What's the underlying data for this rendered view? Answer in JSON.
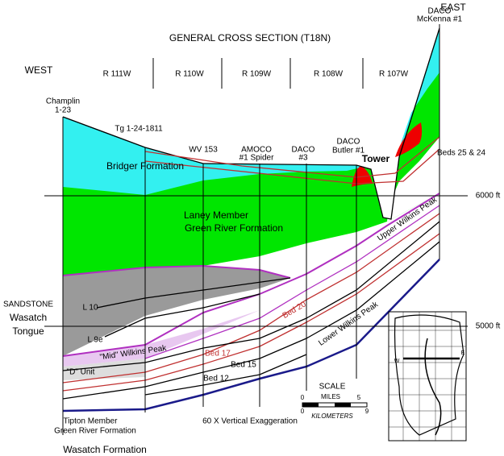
{
  "title": "GENERAL CROSS SECTION (T18N)",
  "directions": {
    "west": "WEST",
    "east": "EAST"
  },
  "ranges": [
    "R 111W",
    "R 110W",
    "R 109W",
    "R 108W",
    "R 107W"
  ],
  "wells": [
    {
      "name": "Champlin",
      "id": "1-23"
    },
    {
      "name": "Tg 1-24-1811"
    },
    {
      "name": "WV 153"
    },
    {
      "name": "AMOCO",
      "id": "#1 Spider"
    },
    {
      "name": "DACO",
      "id": "#3"
    },
    {
      "name": "DACO",
      "id": "Butler #1"
    },
    {
      "name": "DACO",
      "id": "McKenna #1"
    }
  ],
  "elevations": [
    "6000 ft",
    "5000 ft"
  ],
  "units": {
    "bridger": "Bridger Formation",
    "tower": "Tower",
    "beds_25_24": "Beds 25 & 24",
    "laney": "Laney Member",
    "green_river": "Green River Formation",
    "upper_wp": "Upper Wilkins Peak",
    "l10": "L 10",
    "l9e": "L 9e",
    "sandstone": "SANDSTONE",
    "wasatch": "Wasatch",
    "tongue": "Tongue",
    "bed20": "Bed 20",
    "lower_wp": "Lower Wilkins Peak",
    "mid_wp": "\"Mid\" Wilkins Peak",
    "bed17": "Bed 17",
    "bed15": "Bed 15",
    "d_unit": "\"D\" Unit",
    "bed12": "Bed 12",
    "tipton": "Tipton Member",
    "tipton_gr": "Green River Formation",
    "wasatch_fm": "Wasatch Formation"
  },
  "scale": {
    "title": "SCALE",
    "miles": "MILES",
    "mile_ticks": [
      0,
      5
    ],
    "kilometers": "KILOMETERS",
    "km_ticks": [
      0,
      9
    ]
  },
  "note": "60 X Vertical Exaggeration",
  "map": {
    "w": "W",
    "e": "E"
  }
}
